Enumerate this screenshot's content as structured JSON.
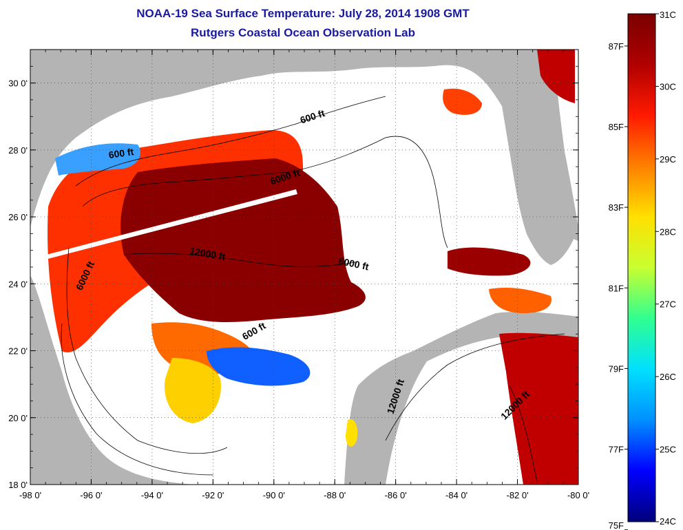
{
  "title": "NOAA-19 Sea Surface Temperature:  July 28, 2014 1908 GMT",
  "subtitle": "Rutgers Coastal Ocean Observation Lab",
  "axes": {
    "lon_ticks": [
      "-98 0'",
      "-96 0'",
      "-94 0'",
      "-92 0'",
      "-90 0'",
      "-88 0'",
      "-86 0'",
      "-84 0'",
      "-82 0'",
      "-80 0'"
    ],
    "lat_ticks": [
      "18 0'",
      "20 0'",
      "22 0'",
      "24 0'",
      "26 0'",
      "28 0'",
      "30 0'"
    ],
    "lon_range": [
      -98,
      -80
    ],
    "lat_range": [
      18,
      31
    ]
  },
  "contour_labels": [
    {
      "text": "600 ft",
      "lon": -95.0,
      "lat": 27.8,
      "angle": -8
    },
    {
      "text": "600 ft",
      "lon": -88.7,
      "lat": 28.9,
      "angle": -18
    },
    {
      "text": "6000 ft",
      "lon": -89.6,
      "lat": 27.1,
      "angle": -18
    },
    {
      "text": "12000 ft",
      "lon": -92.2,
      "lat": 24.8,
      "angle": 10
    },
    {
      "text": "6000 ft",
      "lon": -87.4,
      "lat": 24.5,
      "angle": 12
    },
    {
      "text": "6000 ft",
      "lon": -96.1,
      "lat": 24.2,
      "angle": -65
    },
    {
      "text": "600 ft",
      "lon": -90.6,
      "lat": 22.5,
      "angle": -30
    },
    {
      "text": "12000 ft",
      "lon": -85.9,
      "lat": 20.6,
      "angle": -72
    },
    {
      "text": "12000 ft",
      "lon": -82.0,
      "lat": 20.3,
      "angle": -45
    }
  ],
  "colorbar": {
    "celsius_labels": [
      "31C",
      "30C",
      "29C",
      "28C",
      "27C",
      "26C",
      "25C",
      "24C"
    ],
    "fahrenheit_labels": [
      "87F",
      "85F",
      "83F",
      "81F",
      "79F",
      "77F",
      "75F"
    ],
    "celsius_min": 24,
    "celsius_max": 31,
    "colors": [
      "#00007a",
      "#0000ff",
      "#0090ff",
      "#00e0ff",
      "#30ff90",
      "#c8ff30",
      "#ffe000",
      "#ff8000",
      "#ff1a00",
      "#b00000",
      "#7a0000"
    ]
  },
  "colors": {
    "land": "#b4b4b4",
    "title": "#1a1aa0",
    "nodata": "#ffffff"
  }
}
